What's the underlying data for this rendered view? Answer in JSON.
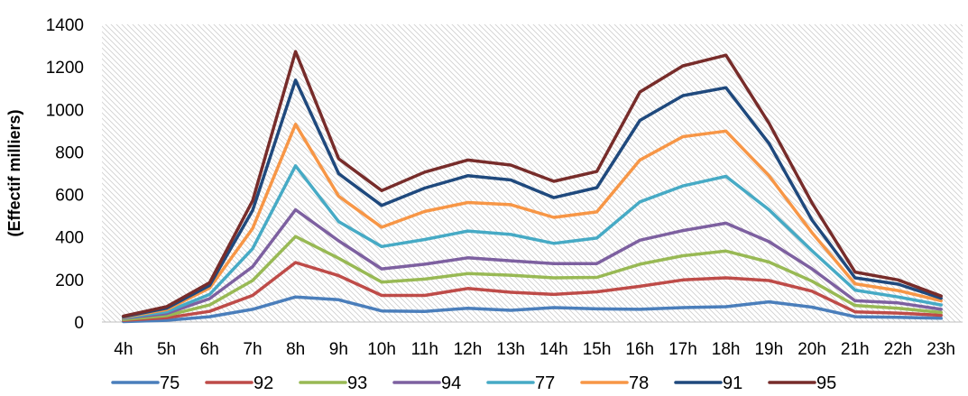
{
  "chart_data": {
    "type": "line",
    "title": "",
    "xlabel": "",
    "ylabel": "(Effectif milliers)",
    "ylim": [
      0,
      1400
    ],
    "yticks": [
      0,
      200,
      400,
      600,
      800,
      1000,
      1200,
      1400
    ],
    "grid": false,
    "legend": "bottom",
    "categories": [
      "4h",
      "5h",
      "6h",
      "7h",
      "8h",
      "9h",
      "10h",
      "11h",
      "12h",
      "13h",
      "14h",
      "15h",
      "16h",
      "17h",
      "18h",
      "19h",
      "20h",
      "21h",
      "22h",
      "23h"
    ],
    "series": [
      {
        "name": "75",
        "color": "#4a7ebb",
        "values": [
          2,
          8,
          25,
          60,
          118,
          105,
          52,
          50,
          65,
          55,
          68,
          62,
          60,
          68,
          72,
          95,
          70,
          25,
          22,
          18
        ]
      },
      {
        "name": "92",
        "color": "#be4b48",
        "values": [
          8,
          20,
          50,
          125,
          280,
          218,
          125,
          125,
          158,
          140,
          130,
          142,
          168,
          198,
          208,
          195,
          145,
          48,
          42,
          32
        ]
      },
      {
        "name": "93",
        "color": "#98b954",
        "values": [
          12,
          30,
          80,
          195,
          402,
          300,
          188,
          202,
          228,
          220,
          208,
          210,
          272,
          312,
          334,
          282,
          192,
          78,
          65,
          45
        ]
      },
      {
        "name": "94",
        "color": "#7d60a0",
        "values": [
          18,
          40,
          110,
          260,
          528,
          382,
          250,
          272,
          302,
          288,
          275,
          275,
          385,
          430,
          465,
          378,
          250,
          100,
          90,
          60
        ]
      },
      {
        "name": "77",
        "color": "#46aac5",
        "values": [
          20,
          48,
          130,
          345,
          735,
          472,
          355,
          388,
          428,
          412,
          370,
          395,
          565,
          640,
          685,
          528,
          335,
          150,
          118,
          80
        ]
      },
      {
        "name": "78",
        "color": "#f79646",
        "values": [
          22,
          58,
          160,
          440,
          930,
          592,
          446,
          520,
          562,
          552,
          492,
          518,
          762,
          872,
          898,
          688,
          420,
          180,
          148,
          100
        ]
      },
      {
        "name": "91",
        "color": "#1f497d",
        "values": [
          25,
          65,
          172,
          525,
          1138,
          698,
          548,
          630,
          688,
          668,
          585,
          632,
          948,
          1065,
          1102,
          840,
          480,
          208,
          178,
          112
        ]
      },
      {
        "name": "95",
        "color": "#772c2a",
        "values": [
          28,
          72,
          185,
          570,
          1272,
          768,
          618,
          705,
          762,
          738,
          662,
          708,
          1082,
          1205,
          1255,
          935,
          560,
          235,
          198,
          122
        ]
      }
    ]
  }
}
